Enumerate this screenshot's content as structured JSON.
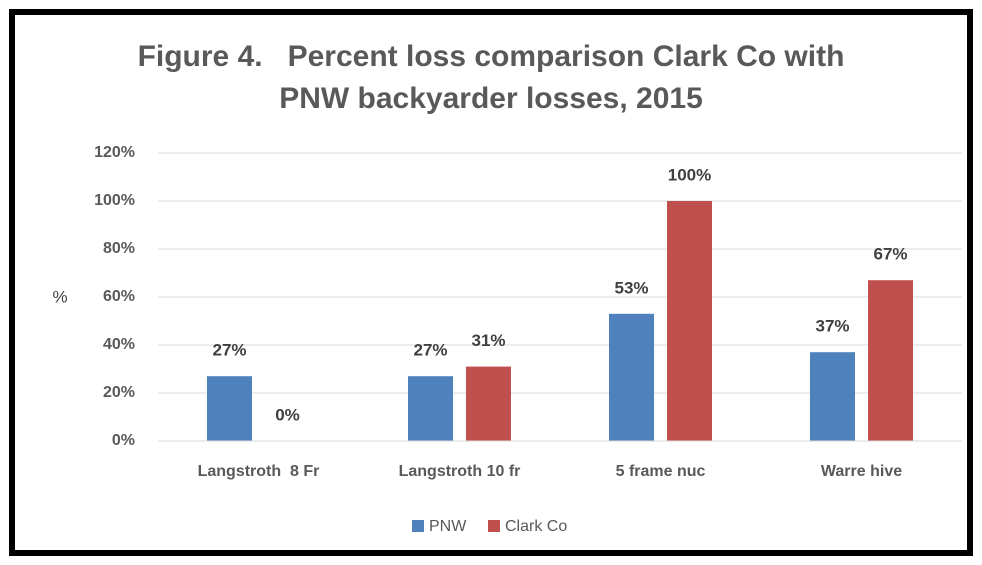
{
  "chart_data": {
    "type": "bar",
    "title": [
      "Figure 4.   Percent loss comparison Clark Co with",
      "PNW backyarder losses, 2015"
    ],
    "y_label": "%",
    "categories": [
      "Langstroth  8 Fr",
      "Langstroth 10 fr",
      "5 frame nuc",
      "Warre hive"
    ],
    "series": [
      {
        "name": "PNW",
        "color": "#4f81bd",
        "values": [
          27,
          27,
          53,
          37
        ],
        "value_labels": [
          "27%",
          "27%",
          "53%",
          "37%"
        ]
      },
      {
        "name": "Clark Co",
        "color": "#c0504d",
        "values": [
          0,
          31,
          100,
          67
        ],
        "value_labels": [
          "0%",
          "31%",
          "100%",
          "67%"
        ]
      }
    ],
    "ylim": [
      0,
      120
    ],
    "yticks": [
      {
        "value": 0,
        "label": "0%"
      },
      {
        "value": 20,
        "label": "20%"
      },
      {
        "value": 40,
        "label": "40%"
      },
      {
        "value": 60,
        "label": "60%"
      },
      {
        "value": 80,
        "label": "80%"
      },
      {
        "value": 100,
        "label": "100%"
      },
      {
        "value": 120,
        "label": "120%"
      }
    ],
    "grid": true,
    "legend": "bottom"
  }
}
